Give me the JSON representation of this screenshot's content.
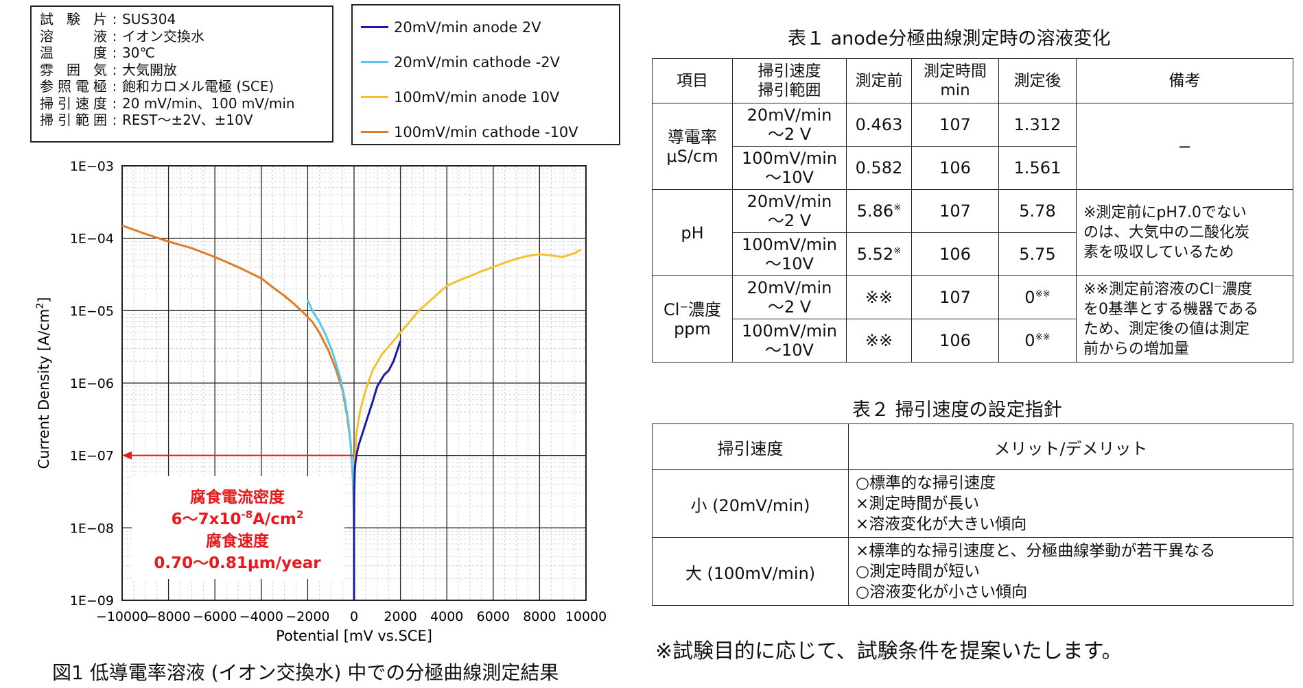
{
  "conditions": [
    {
      "key": "試験片",
      "value": "SUS304"
    },
    {
      "key": "溶液",
      "value": "イオン交換水"
    },
    {
      "key": "温度",
      "value": "30℃"
    },
    {
      "key": "雰囲気",
      "value": "大気開放"
    },
    {
      "key": "参照電極",
      "value": "飽和カロメル電極 (SCE)"
    },
    {
      "key": "掃引速度",
      "value": "20 mV/min、100 mV/min"
    },
    {
      "key": "掃引範囲",
      "value": "REST〜±2V、±10V"
    }
  ],
  "colors": {
    "blue": "#1a1aa6",
    "cyan": "#56c8ec",
    "yellow": "#f5c12e",
    "orange": "#e07a24",
    "red": "#e8181c"
  },
  "annotation": {
    "line1": "腐食電流密度",
    "line2": "6〜7x10",
    "line2_sup": "-8",
    "line2_tail": "A/cm",
    "line2_tail_sup": "2",
    "line3": "腐食速度",
    "line4": "0.70〜0.81μm/year"
  },
  "chart_data": {
    "type": "line",
    "xlabel": "Potential [mV vs.SCE]",
    "ylabel": "Current Density [A/cm",
    "ylabel_sup": "2",
    "ylabel_tail": "]",
    "y_scale": "log",
    "xlim": [
      -10000,
      10000
    ],
    "ylim": [
      1e-09,
      0.001
    ],
    "x_ticks": [
      "−10000",
      "−8000",
      "−6000",
      "−4000",
      "−2000",
      "0",
      "2000",
      "4000",
      "6000",
      "8000",
      "10000"
    ],
    "x_tick_values": [
      -10000,
      -8000,
      -6000,
      -4000,
      -2000,
      0,
      2000,
      4000,
      6000,
      8000,
      10000
    ],
    "y_ticks": [
      "1E−09",
      "1E−08",
      "1E−07",
      "1E−06",
      "1E−05",
      "1E−04",
      "1E−03"
    ],
    "y_tick_values": [
      1e-09,
      1e-08,
      1e-07,
      1e-06,
      1e-05,
      0.0001,
      0.001
    ],
    "grid": true,
    "legend_position": "top",
    "marker_y": 1e-07,
    "series": [
      {
        "name": "20mV/min anode 2V",
        "color": "#1a1aa6",
        "x": [
          0,
          0,
          10,
          30,
          60,
          100,
          200,
          400,
          600,
          800,
          1000,
          1300,
          1500,
          1700,
          2000
        ],
        "y": [
          1e-09,
          1e-08,
          3e-08,
          6e-08,
          8e-08,
          1e-07,
          1.4e-07,
          2.2e-07,
          3.5e-07,
          5.5e-07,
          9e-07,
          1.3e-06,
          1.5e-06,
          2e-06,
          3.8e-06
        ]
      },
      {
        "name": "20mV/min cathode -2V",
        "color": "#56c8ec",
        "x": [
          0,
          0,
          -30,
          -80,
          -150,
          -250,
          -400,
          -600,
          -900,
          -1200,
          -1500,
          -1800,
          -2000
        ],
        "y": [
          1e-09,
          1e-08,
          3e-08,
          7e-08,
          1.5e-07,
          3e-07,
          6e-07,
          1.2e-06,
          2.5e-06,
          4.5e-06,
          7e-06,
          1e-05,
          1.4e-05
        ]
      },
      {
        "name": "100mV/min anode 10V",
        "color": "#f5c12e",
        "x": [
          0,
          0,
          30,
          100,
          250,
          500,
          800,
          1200,
          1600,
          2000,
          2400,
          2800,
          3200,
          3600,
          4000,
          4500,
          5000,
          5500,
          6000,
          6500,
          7000,
          7500,
          8000,
          8500,
          9000,
          9500,
          9800
        ],
        "y": [
          1e-09,
          3e-08,
          8e-08,
          2e-07,
          4e-07,
          8e-07,
          1.5e-06,
          2.5e-06,
          3.5e-06,
          5e-06,
          7e-06,
          1e-05,
          1.3e-05,
          1.7e-05,
          2.2e-05,
          2.6e-05,
          3e-05,
          3.5e-05,
          4e-05,
          4.6e-05,
          5.2e-05,
          5.7e-05,
          6e-05,
          5.8e-05,
          5.5e-05,
          6.2e-05,
          7e-05
        ]
      },
      {
        "name": "100mV/min cathode -10V",
        "color": "#e07a24",
        "x": [
          0,
          0,
          -50,
          -150,
          -300,
          -500,
          -800,
          -1100,
          -1500,
          -1800,
          -2200,
          -2600,
          -3000,
          -3500,
          -4000,
          -5000,
          -6000,
          -7000,
          -8000,
          -9000,
          -10000
        ],
        "y": [
          1e-09,
          1e-08,
          5e-08,
          1.5e-07,
          3.5e-07,
          8e-07,
          1.6e-06,
          2.8e-06,
          5e-06,
          7e-06,
          9.5e-06,
          1.25e-05,
          1.6e-05,
          2.1e-05,
          2.8e-05,
          4e-05,
          5.5e-05,
          7.3e-05,
          9e-05,
          0.000115,
          0.00015
        ]
      }
    ]
  },
  "fig_caption": "図1  低導電率溶液 (イオン交換水) 中での分極曲線測定結果",
  "table1": {
    "title": "表１  anode分極曲線測定時の溶液変化",
    "headers": [
      "項目",
      "掃引速度\n掃引範囲",
      "測定前",
      "測定時間\nmin",
      "測定後",
      "備考"
    ],
    "groups": [
      {
        "item": "導電率\nμS/cm",
        "note": "−",
        "rows": [
          {
            "speed": "20mV/min\n〜2 V",
            "before": "0.463",
            "time": "107",
            "after": "1.312"
          },
          {
            "speed": "100mV/min\n〜10V",
            "before": "0.582",
            "time": "106",
            "after": "1.561"
          }
        ]
      },
      {
        "item": "pH",
        "note": "※測定前にpH7.0でない\nのは、大気中の二酸化炭\n素を吸収しているため",
        "rows": [
          {
            "speed": "20mV/min\n〜2 V",
            "before": "5.86",
            "before_sup": "※",
            "time": "107",
            "after": "5.78"
          },
          {
            "speed": "100mV/min\n〜10V",
            "before": "5.52",
            "before_sup": "※",
            "time": "106",
            "after": "5.75"
          }
        ]
      },
      {
        "item": "Cl⁻濃度\nppm",
        "note": "※※測定前溶液のCl⁻濃度\nを0基準とする機器である\nため、測定後の値は測定\n前からの増加量",
        "rows": [
          {
            "speed": "20mV/min\n〜2 V",
            "before": "※※",
            "time": "107",
            "after": "0",
            "after_sup": "※※"
          },
          {
            "speed": "100mV/min\n〜10V",
            "before": "※※",
            "time": "106",
            "after": "0",
            "after_sup": "※※"
          }
        ]
      }
    ]
  },
  "table2": {
    "title": "表２  掃引速度の設定指針",
    "headers": [
      "掃引速度",
      "メリット/デメリット"
    ],
    "rows": [
      {
        "speed": "小 (20mV/min)",
        "merits": "○標準的な掃引速度\n×測定時間が長い\n×溶液変化が大きい傾向"
      },
      {
        "speed": "大 (100mV/min)",
        "merits": "×標準的な掃引速度と、分極曲線挙動が若干異なる\n○測定時間が短い\n○溶液変化が小さい傾向"
      }
    ]
  },
  "bottom_note": "※試験目的に応じて、試験条件を提案いたします。"
}
